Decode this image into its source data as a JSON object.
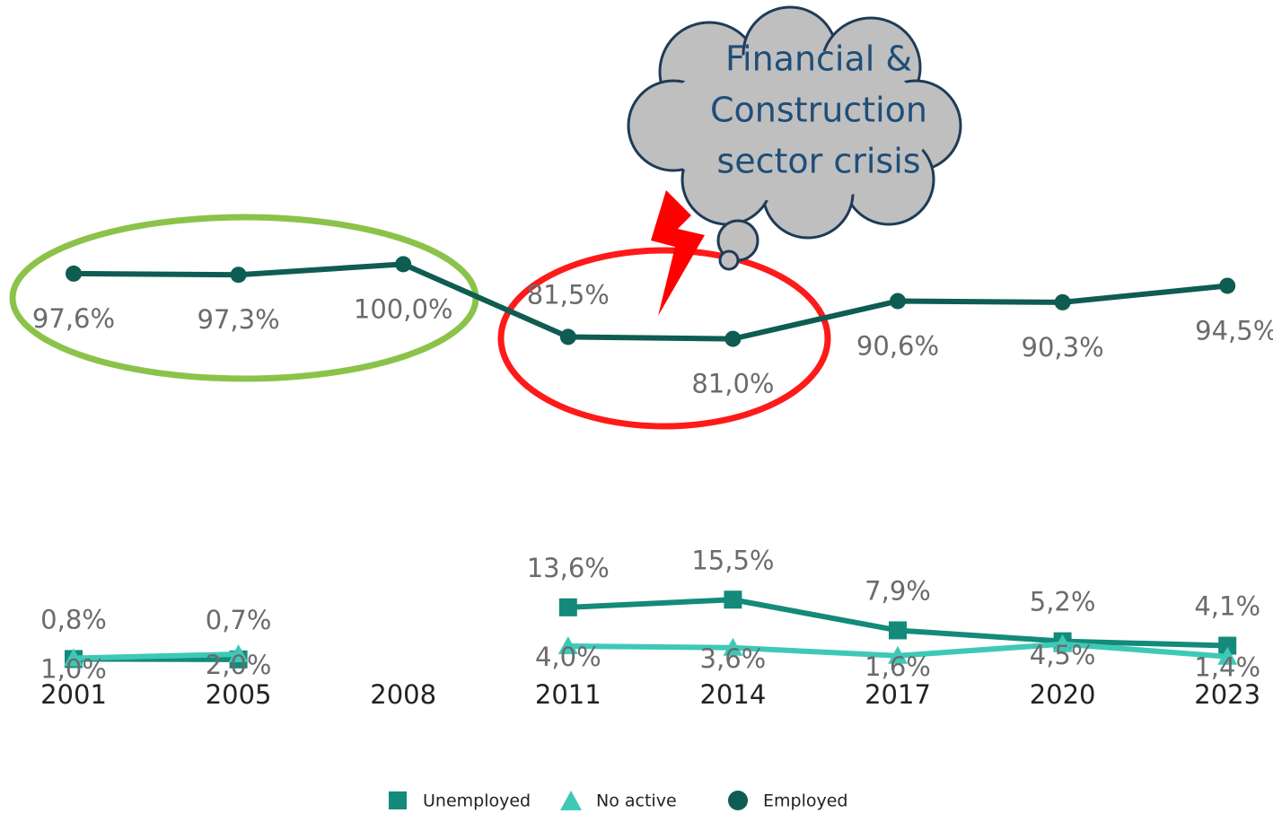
{
  "chart_data": {
    "type": "line",
    "categories": [
      "2001",
      "2005",
      "2008",
      "2011",
      "2014",
      "2017",
      "2020",
      "2023"
    ],
    "ylim": [
      0,
      20
    ],
    "y2lim": [
      80,
      101
    ],
    "series": [
      {
        "name": "Unemployed",
        "color": "#138a7a",
        "marker": "square",
        "values": [
          0.8,
          0.7,
          null,
          13.6,
          15.5,
          7.9,
          5.2,
          4.1
        ],
        "value_labels": [
          "0,8%",
          "0,7%",
          null,
          "13,6%",
          "15,5%",
          "7,9%",
          "5,2%",
          "4,1%"
        ]
      },
      {
        "name": "No active",
        "color": "#3ec9b7",
        "marker": "triangle",
        "values": [
          1.0,
          2.0,
          null,
          4.0,
          3.6,
          1.6,
          4.5,
          1.4
        ],
        "value_labels": [
          "1,0%",
          "2,0%",
          null,
          "4,0%",
          "3,6%",
          "1,6%",
          "4,5%",
          "1,4%"
        ]
      },
      {
        "name": "Employed",
        "color": "#0e5c52",
        "marker": "circle",
        "axis": "y2",
        "values": [
          97.6,
          97.3,
          100.0,
          81.5,
          81.0,
          90.6,
          90.3,
          94.5
        ],
        "value_labels": [
          "97,6%",
          "97,3%",
          "100,0%",
          "81,5%",
          "81,0%",
          "90,6%",
          "90,3%",
          "94,5%"
        ]
      }
    ],
    "annotation": [
      "Financial &",
      "Construction",
      "sector crisis"
    ]
  }
}
